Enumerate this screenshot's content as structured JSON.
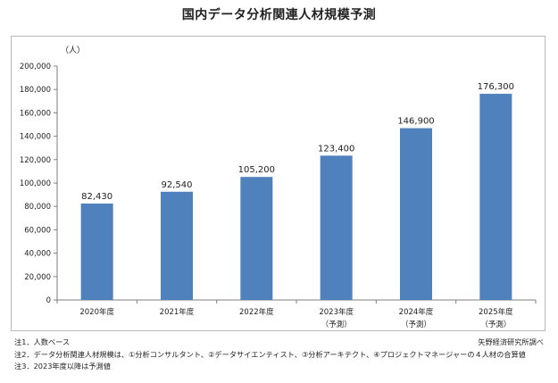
{
  "title": "国内データ分析関連人材規模予測",
  "chart_data": {
    "type": "bar",
    "title": "国内データ分析関連人材規模予測",
    "yunit": "（人）",
    "categories": [
      "2020年度",
      "2021年度",
      "2022年度",
      "2023年度",
      "2024年度",
      "2025年度"
    ],
    "category_sublabels": [
      "",
      "",
      "",
      "（予測）",
      "（予測）",
      "（予測）"
    ],
    "values": [
      82430,
      92540,
      105200,
      123400,
      146900,
      176300
    ],
    "value_labels": [
      "82,430",
      "92,540",
      "105,200",
      "123,400",
      "146,900",
      "176,300"
    ],
    "ylim": [
      0,
      200000
    ],
    "yticks": [
      "0",
      "20,000",
      "40,000",
      "60,000",
      "80,000",
      "100,000",
      "120,000",
      "140,000",
      "160,000",
      "180,000",
      "200,000"
    ],
    "bar_color": "#4f81bd",
    "grid": false
  },
  "notes": [
    "注1．人数ベース",
    "注2．データ分析関連人材規模は、①分析コンサルタント、②データサイエンティスト、③分析アーキテクト、④プロジェクトマネージャーの４人材の合算値",
    "注3．2023年度以降は予測値"
  ],
  "source": "矢野経済研究所調べ"
}
